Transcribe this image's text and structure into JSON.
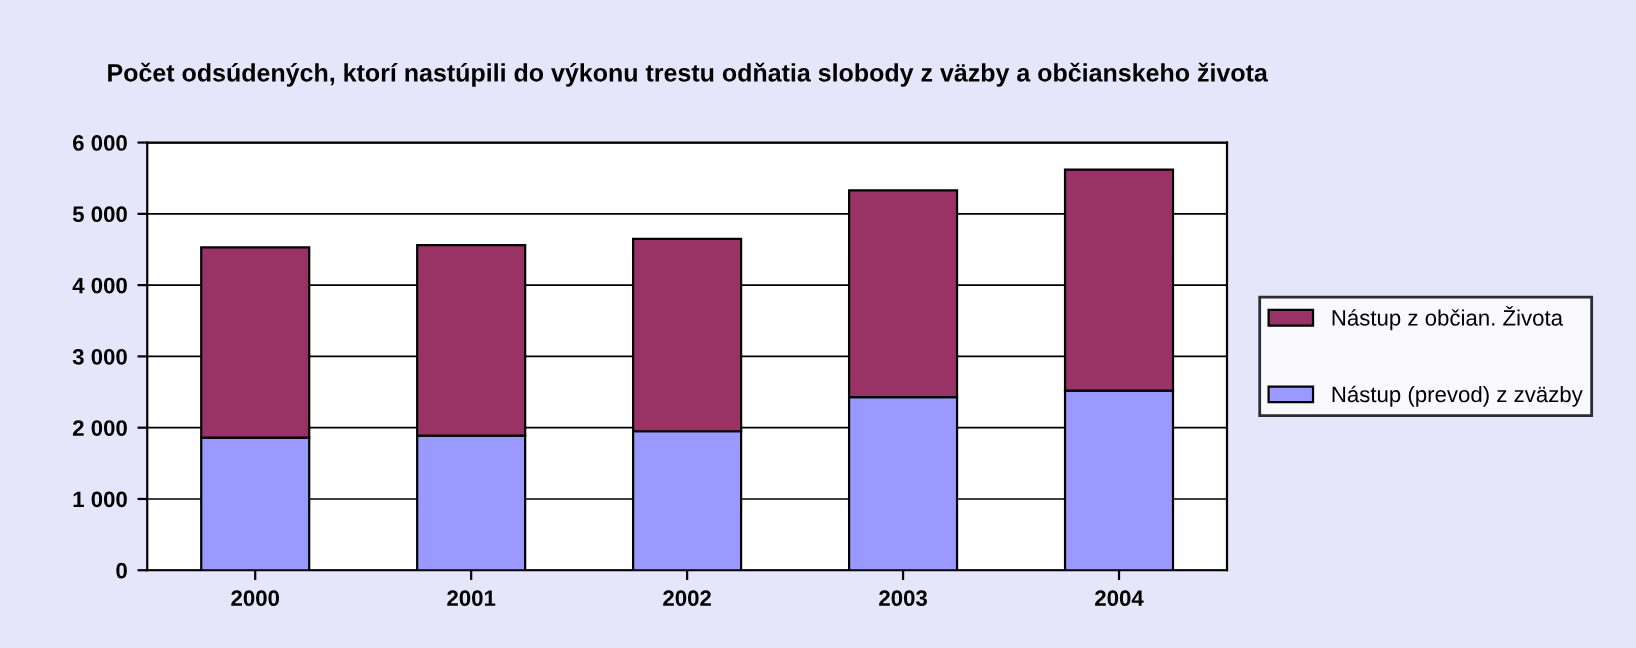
{
  "chart_data": {
    "type": "bar",
    "title": "Počet odsúdených, ktorí nastúpili do výkonu trestu odňatia slobody z väzby a občianskeho života",
    "categories": [
      "2000",
      "2001",
      "2002",
      "2003",
      "2004"
    ],
    "stacked": true,
    "series": [
      {
        "name": "Nástup (prevod) z zväzby",
        "color": "#9999ff",
        "values": [
          1860,
          1890,
          1950,
          2430,
          2520
        ]
      },
      {
        "name": "Nástup z občian. Života",
        "color": "#993366",
        "values": [
          2670,
          2670,
          2700,
          2900,
          3100
        ]
      }
    ],
    "ylim": [
      0,
      6000
    ],
    "yticks": [
      0,
      {
        "value": 1000,
        "label": "1 000"
      },
      {
        "value": 2000,
        "label": "2 000"
      },
      {
        "value": 3000,
        "label": "3 000"
      },
      {
        "value": 4000,
        "label": "4 000"
      },
      {
        "value": 5000,
        "label": "5 000"
      },
      {
        "value": 6000,
        "label": "6 000"
      }
    ],
    "grid": "y",
    "legend": "right"
  }
}
